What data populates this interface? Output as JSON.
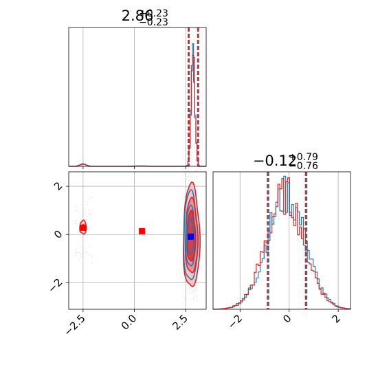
{
  "chart_data": [
    {
      "panel": "top-left",
      "type": "histogram",
      "title": {
        "median": "2.86",
        "upper": "+0.23",
        "lower": "−0.23"
      },
      "xlim": [
        -3.2,
        3.5
      ],
      "grid": true,
      "quantiles": {
        "blue": [
          2.63,
          2.86,
          3.09
        ],
        "red": [
          2.63,
          2.86,
          3.09
        ]
      },
      "colors": {
        "blue": "#1f77b4",
        "red": "#d62728"
      }
    },
    {
      "panel": "bottom-left",
      "type": "contour",
      "xlim": [
        -3.2,
        3.5
      ],
      "ylim": [
        -3.1,
        2.6
      ],
      "xticks": [
        -2.5,
        0.0,
        2.5
      ],
      "xticklabels": [
        "−2.5",
        "0.0",
        "2.5"
      ],
      "yticks": [
        -2,
        0,
        2
      ],
      "yticklabels": [
        "−2",
        "0",
        "2"
      ],
      "grid": true,
      "markers": [
        {
          "x": -2.5,
          "y": 0.28,
          "color": "#ff0000"
        },
        {
          "x": 0.37,
          "y": 0.14,
          "color": "#ff0000"
        },
        {
          "x": 2.75,
          "y": -0.09,
          "color": "#0000ff"
        }
      ],
      "colors": {
        "blue": "#1f77b4",
        "red": "#d62728"
      }
    },
    {
      "panel": "bottom-right",
      "type": "histogram",
      "title": {
        "median": "−0.12",
        "upper": "+0.79",
        "lower": "−0.76"
      },
      "xlim": [
        -3.1,
        2.5
      ],
      "xticks": [
        -2,
        0,
        2
      ],
      "xticklabels": [
        "−2",
        "0",
        "2"
      ],
      "grid": true,
      "quantiles": {
        "blue": [
          -0.88,
          -0.12,
          0.67
        ],
        "red": [
          -0.88,
          -0.12,
          0.67
        ]
      },
      "colors": {
        "blue": "#1f77b4",
        "red": "#d62728"
      }
    }
  ]
}
